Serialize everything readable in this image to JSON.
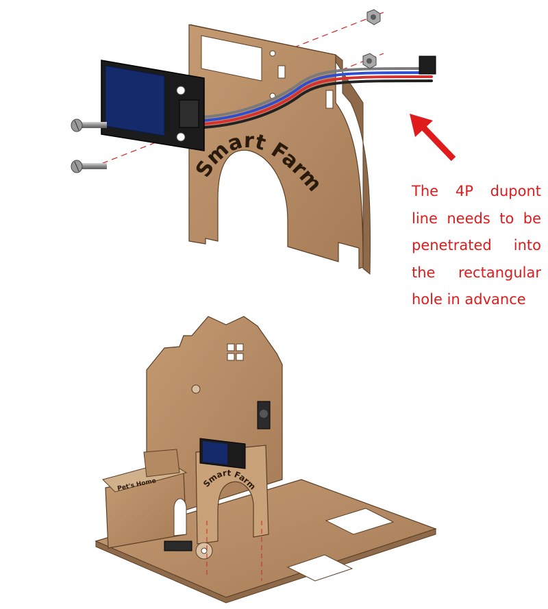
{
  "note": {
    "text": "The 4P dupont line needs to be penetrated into the rectangular hole in advance",
    "color": "#e01b1b"
  },
  "panel_label": "Smart Farm",
  "lower_panel_label": "Smart Farm",
  "pet_sign": "Pet's Home",
  "colors": {
    "wood": "#b88d66",
    "wood_edge": "#5a3e26",
    "wood_side": "#9a7250",
    "screen": "#142a6a",
    "guide_line": "#d42020",
    "arrow": "#e01b1b"
  },
  "parts": {
    "screws": [
      "screw-icon",
      "screw-icon"
    ],
    "nuts": [
      "nut-icon",
      "nut-icon"
    ],
    "display": "lcd-module",
    "cable": "4p-dupont-cable"
  }
}
